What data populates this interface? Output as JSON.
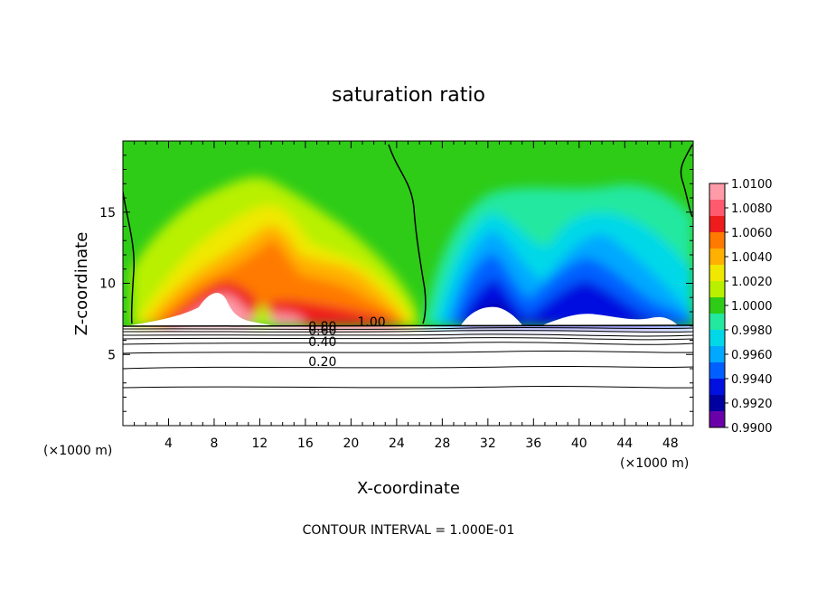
{
  "chart_data": {
    "type": "heatmap",
    "title": "saturation ratio",
    "xlabel": "X-coordinate",
    "ylabel": "Z-coordinate",
    "x_unit_left": "(×1000 m)",
    "x_unit_right": "(×1000 m)",
    "xlim": [
      0,
      50
    ],
    "ylim": [
      0,
      20
    ],
    "x_ticks": [
      4,
      8,
      12,
      16,
      20,
      24,
      28,
      32,
      36,
      40,
      44,
      48
    ],
    "y_ticks": [
      5,
      10,
      15
    ],
    "footer": "CONTOUR INTERVAL = 1.000E-01",
    "colorbar": {
      "levels": [
        "1.0100",
        "1.0080",
        "1.0060",
        "1.0040",
        "1.0020",
        "1.0000",
        "0.9980",
        "0.9960",
        "0.9940",
        "0.9920",
        "0.9900"
      ],
      "colors": [
        "#ff9aa8",
        "#ff5a6e",
        "#ee1c1c",
        "#ff7a00",
        "#ffb000",
        "#f0e800",
        "#b8f000",
        "#2ecc17",
        "#22e8a0",
        "#00d8e8",
        "#00a8ff",
        "#0060ff",
        "#0010e0",
        "#0000a0",
        "#6a00a8"
      ]
    },
    "contour_labels": [
      {
        "text": "1.00",
        "x": 21.8,
        "z": 7.3
      },
      {
        "text": "0.80",
        "x": 17.5,
        "z": 7.0
      },
      {
        "text": "0.60",
        "x": 17.5,
        "z": 6.7
      },
      {
        "text": "0.40",
        "x": 17.5,
        "z": 5.9
      },
      {
        "text": "0.20",
        "x": 17.5,
        "z": 4.5
      }
    ]
  }
}
